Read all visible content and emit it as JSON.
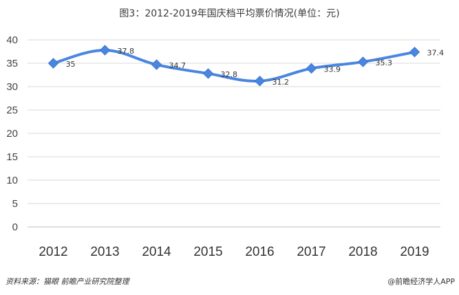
{
  "chart_data": {
    "type": "line",
    "title": "图3：2012-2019年国庆档平均票价情况(单位：元)",
    "categories": [
      "2012",
      "2013",
      "2014",
      "2015",
      "2016",
      "2017",
      "2018",
      "2019"
    ],
    "series": [
      {
        "values": [
          35,
          37.8,
          34.7,
          32.8,
          31.2,
          33.9,
          35.3,
          37.4
        ]
      }
    ],
    "data_labels": [
      "35",
      "37.8",
      "34.7",
      "32.8",
      "31.2",
      "33.9",
      "35.3",
      "37.4"
    ],
    "yticks": [
      "0",
      "5",
      "10",
      "15",
      "20",
      "25",
      "30",
      "35",
      "40"
    ],
    "ylim": [
      0,
      40
    ],
    "grid": true,
    "line_color": "#4a86e0",
    "xlabel": "",
    "ylabel": ""
  },
  "footer": {
    "source": "资料来源：猫眼 前瞻产业研究院整理",
    "brand": "@前瞻经济学人APP"
  }
}
